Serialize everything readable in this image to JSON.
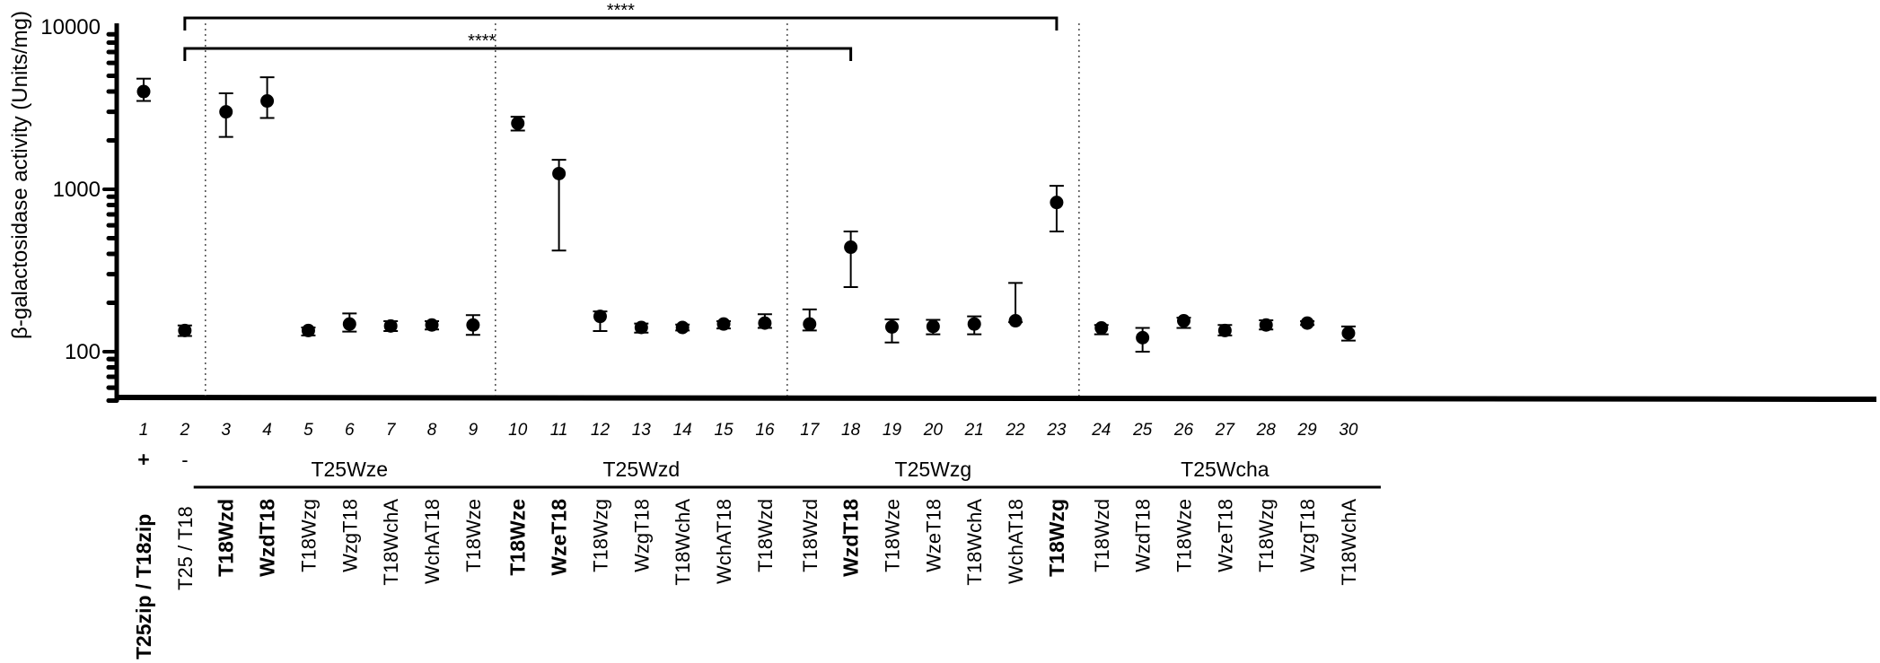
{
  "chart_data": {
    "type": "scatter",
    "ylabel": "β-galactosidase activity (Units/mg)",
    "yscale": "log",
    "ylim": [
      50,
      10000
    ],
    "yticks": [
      100,
      1000,
      10000
    ],
    "ytick_labels": [
      "100",
      "1000",
      "10000"
    ],
    "grid": false,
    "points": [
      {
        "pos": 1,
        "label": "1",
        "value": 4000,
        "low": 3500,
        "high": 4800
      },
      {
        "pos": 2,
        "label": "2",
        "value": 135,
        "low": 125,
        "high": 145
      },
      {
        "pos": 3,
        "label": "3",
        "value": 3000,
        "low": 2100,
        "high": 3900
      },
      {
        "pos": 4,
        "label": "4",
        "value": 3500,
        "low": 2750,
        "high": 4900
      },
      {
        "pos": 5,
        "label": "5",
        "value": 135,
        "low": 126,
        "high": 141
      },
      {
        "pos": 6,
        "label": "6",
        "value": 148,
        "low": 133,
        "high": 172
      },
      {
        "pos": 7,
        "label": "7",
        "value": 144,
        "low": 134,
        "high": 154
      },
      {
        "pos": 8,
        "label": "8",
        "value": 146,
        "low": 137,
        "high": 154
      },
      {
        "pos": 9,
        "label": "9",
        "value": 146,
        "low": 127,
        "high": 168
      },
      {
        "pos": 10,
        "label": "10",
        "value": 2550,
        "low": 2300,
        "high": 2800
      },
      {
        "pos": 11,
        "label": "11",
        "value": 1250,
        "low": 420,
        "high": 1520
      },
      {
        "pos": 12,
        "label": "12",
        "value": 165,
        "low": 134,
        "high": 177
      },
      {
        "pos": 13,
        "label": "13",
        "value": 141,
        "low": 131,
        "high": 149
      },
      {
        "pos": 14,
        "label": "14",
        "value": 141,
        "low": 135,
        "high": 147
      },
      {
        "pos": 15,
        "label": "15",
        "value": 148,
        "low": 139,
        "high": 154
      },
      {
        "pos": 16,
        "label": "16",
        "value": 150,
        "low": 140,
        "high": 170
      },
      {
        "pos": 17,
        "label": "17",
        "value": 148,
        "low": 135,
        "high": 182
      },
      {
        "pos": 18,
        "label": "18",
        "value": 440,
        "low": 250,
        "high": 550
      },
      {
        "pos": 19,
        "label": "19",
        "value": 142,
        "low": 114,
        "high": 158
      },
      {
        "pos": 20,
        "label": "20",
        "value": 143,
        "low": 128,
        "high": 157
      },
      {
        "pos": 21,
        "label": "21",
        "value": 148,
        "low": 128,
        "high": 165
      },
      {
        "pos": 22,
        "label": "22",
        "value": 155,
        "low": 152,
        "high": 265
      },
      {
        "pos": 23,
        "label": "23",
        "value": 830,
        "low": 550,
        "high": 1050
      },
      {
        "pos": 24,
        "label": "24",
        "value": 140,
        "low": 128,
        "high": 146
      },
      {
        "pos": 25,
        "label": "25",
        "value": 122,
        "low": 100,
        "high": 140
      },
      {
        "pos": 26,
        "label": "26",
        "value": 155,
        "low": 140,
        "high": 162
      },
      {
        "pos": 27,
        "label": "27",
        "value": 135,
        "low": 126,
        "high": 146
      },
      {
        "pos": 28,
        "label": "28",
        "value": 146,
        "low": 137,
        "high": 156
      },
      {
        "pos": 29,
        "label": "29",
        "value": 150,
        "low": 146,
        "high": 154
      },
      {
        "pos": 30,
        "label": "30",
        "value": 130,
        "low": 117,
        "high": 143
      }
    ],
    "significance": [
      {
        "from": 2,
        "to": 23,
        "label": "****"
      },
      {
        "from": 2,
        "to": 18,
        "label": "****"
      }
    ],
    "controls": [
      {
        "pos": 1,
        "label": "T25zip / T18zip",
        "sign": "+",
        "bold": true
      },
      {
        "pos": 2,
        "label": "T25 / T18",
        "sign": "-",
        "bold": false
      }
    ],
    "groups": [
      {
        "name": "T25Wze",
        "samples": [
          {
            "pos": 3,
            "label": "T18Wzd",
            "bold": true
          },
          {
            "pos": 4,
            "label": "WzdT18",
            "bold": true
          },
          {
            "pos": 5,
            "label": "T18Wzg",
            "bold": false
          },
          {
            "pos": 6,
            "label": "WzgT18",
            "bold": false
          },
          {
            "pos": 7,
            "label": "T18WchA",
            "bold": false
          },
          {
            "pos": 8,
            "label": "WchAT18",
            "bold": false
          },
          {
            "pos": 9,
            "label": "T18Wze",
            "bold": false
          }
        ]
      },
      {
        "name": "T25Wzd",
        "samples": [
          {
            "pos": 10,
            "label": "T18Wze",
            "bold": true
          },
          {
            "pos": 11,
            "label": "WzeT18",
            "bold": true
          },
          {
            "pos": 12,
            "label": "T18Wzg",
            "bold": false
          },
          {
            "pos": 13,
            "label": "WzgT18",
            "bold": false
          },
          {
            "pos": 14,
            "label": "T18WchA",
            "bold": false
          },
          {
            "pos": 15,
            "label": "WchAT18",
            "bold": false
          },
          {
            "pos": 16,
            "label": "T18Wzd",
            "bold": false
          }
        ]
      },
      {
        "name": "T25Wzg",
        "samples": [
          {
            "pos": 17,
            "label": "T18Wzd",
            "bold": false
          },
          {
            "pos": 18,
            "label": "WzdT18",
            "bold": true
          },
          {
            "pos": 19,
            "label": "T18Wze",
            "bold": false
          },
          {
            "pos": 20,
            "label": "WzeT18",
            "bold": false
          },
          {
            "pos": 21,
            "label": "T18WchA",
            "bold": false
          },
          {
            "pos": 22,
            "label": "WchAT18",
            "bold": false
          },
          {
            "pos": 23,
            "label": "T18Wzg",
            "bold": true
          }
        ]
      },
      {
        "name": "T25Wcha",
        "samples": [
          {
            "pos": 24,
            "label": "T18Wzd",
            "bold": false
          },
          {
            "pos": 25,
            "label": "WzdT18",
            "bold": false
          },
          {
            "pos": 26,
            "label": "T18Wze",
            "bold": false
          },
          {
            "pos": 27,
            "label": "WzeT18",
            "bold": false
          },
          {
            "pos": 28,
            "label": "T18Wzg",
            "bold": false
          },
          {
            "pos": 29,
            "label": "WzgT18",
            "bold": false
          },
          {
            "pos": 30,
            "label": "T18WchA",
            "bold": false
          }
        ]
      }
    ]
  }
}
